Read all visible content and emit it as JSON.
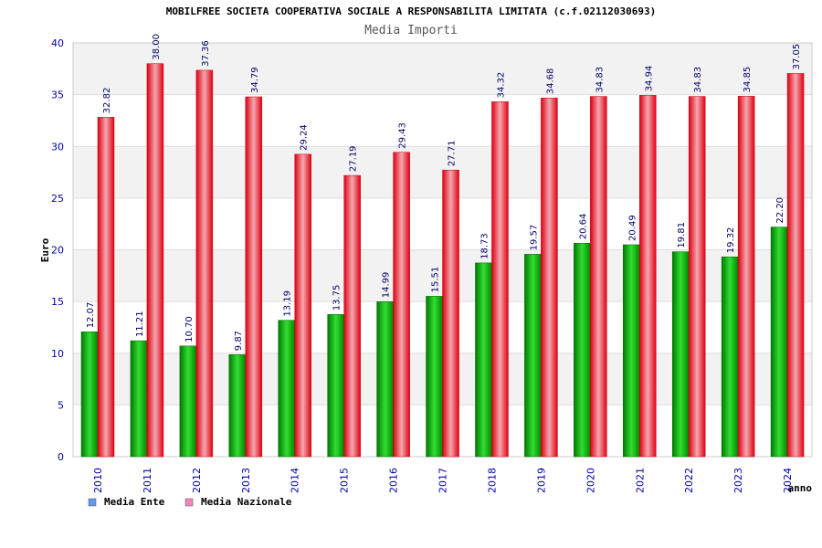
{
  "chart_data": {
    "type": "bar",
    "title": "MOBILFREE SOCIETA COOPERATIVA SOCIALE A RESPONSABILITA LIMITATA (c.f.02112030693)",
    "subtitle": "Media Importi",
    "xlabel": "anno",
    "ylabel": "Euro",
    "ylim": [
      0,
      40
    ],
    "yticks": [
      0,
      5,
      10,
      15,
      20,
      25,
      30,
      35,
      40
    ],
    "grid": true,
    "legend_position": "bottom-left",
    "categories": [
      "2010",
      "2011",
      "2012",
      "2013",
      "2014",
      "2015",
      "2016",
      "2017",
      "2018",
      "2019",
      "2020",
      "2021",
      "2022",
      "2023",
      "2024"
    ],
    "series": [
      {
        "name": "Media Ente",
        "color": "#00aa00",
        "legend_color": "#6699ee",
        "values": [
          12.07,
          11.21,
          10.7,
          9.87,
          13.19,
          13.75,
          14.99,
          15.51,
          18.73,
          19.57,
          20.64,
          20.49,
          19.81,
          19.32,
          22.2
        ],
        "labels": [
          "12.07",
          "11.21",
          "10.70",
          "9.87",
          "13.19",
          "13.75",
          "14.99",
          "15.51",
          "18.73",
          "19.57",
          "20.64",
          "20.49",
          "19.81",
          "19.32",
          "22.20"
        ]
      },
      {
        "name": "Media Nazionale",
        "color": "#ee1122",
        "legend_color": "#ee88bb",
        "values": [
          32.82,
          38.0,
          37.36,
          34.79,
          29.24,
          27.19,
          29.43,
          27.71,
          34.32,
          34.68,
          34.83,
          34.94,
          34.83,
          34.85,
          37.05
        ],
        "labels": [
          "32.82",
          "38.00",
          "37.36",
          "34.79",
          "29.24",
          "27.19",
          "29.43",
          "27.71",
          "34.32",
          "34.68",
          "34.83",
          "34.94",
          "34.83",
          "34.85",
          "37.05"
        ]
      }
    ]
  }
}
